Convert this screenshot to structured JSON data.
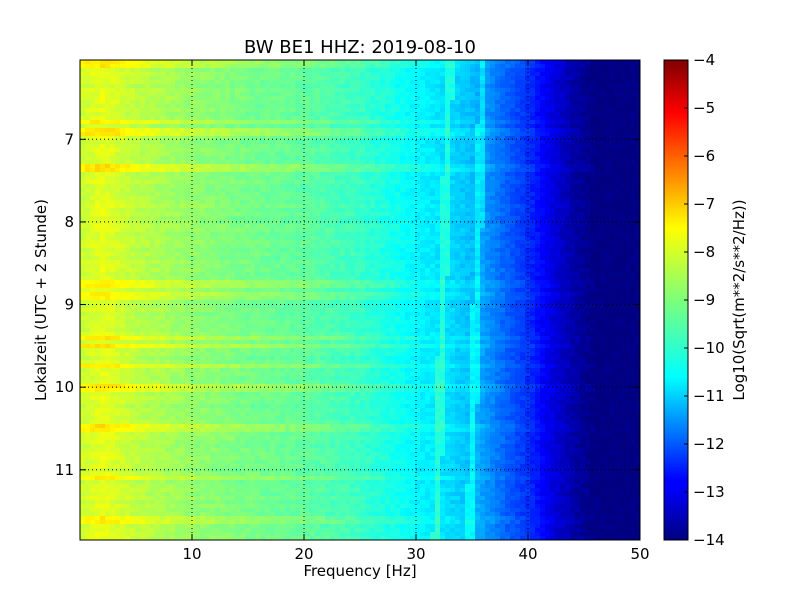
{
  "chart_data": {
    "type": "heatmap",
    "title": "BW BE1 HHZ: 2019-08-10",
    "xlabel": "Frequency [Hz]",
    "ylabel": "Lokalzeit (UTC + 2 Stunde)",
    "xlim": [
      0,
      50
    ],
    "ylim": [
      6.04,
      11.85
    ],
    "y_inverted": true,
    "x_ticks": [
      10,
      20,
      30,
      40,
      50
    ],
    "y_ticks": [
      7,
      8,
      9,
      10,
      11
    ],
    "grid": true,
    "colormap": "jet",
    "colorbar": {
      "label": "Log10(Sqrt(m**2/s**2/Hz))",
      "range": [
        -14,
        -4
      ],
      "ticks": [
        -4,
        -5,
        -6,
        -7,
        -8,
        -9,
        -10,
        -11,
        -12,
        -13,
        -14
      ]
    },
    "value_profile": {
      "frequency_hz": [
        0,
        2,
        5,
        10,
        15,
        20,
        25,
        30,
        33,
        35,
        38,
        40,
        42,
        44,
        46,
        50
      ],
      "log10_psd": [
        -8.3,
        -8.0,
        -8.4,
        -8.8,
        -9.1,
        -9.3,
        -9.7,
        -10.3,
        -10.6,
        -10.9,
        -11.8,
        -12.3,
        -13.0,
        -13.6,
        -14.0,
        -14.0
      ]
    },
    "bright_bands_local_time": [
      6.1,
      6.8,
      6.9,
      7.35,
      8.75,
      8.9,
      9.4,
      9.5,
      9.75,
      10.0,
      10.5,
      11.1,
      11.6
    ],
    "line_features_hz": [
      33,
      36
    ]
  }
}
